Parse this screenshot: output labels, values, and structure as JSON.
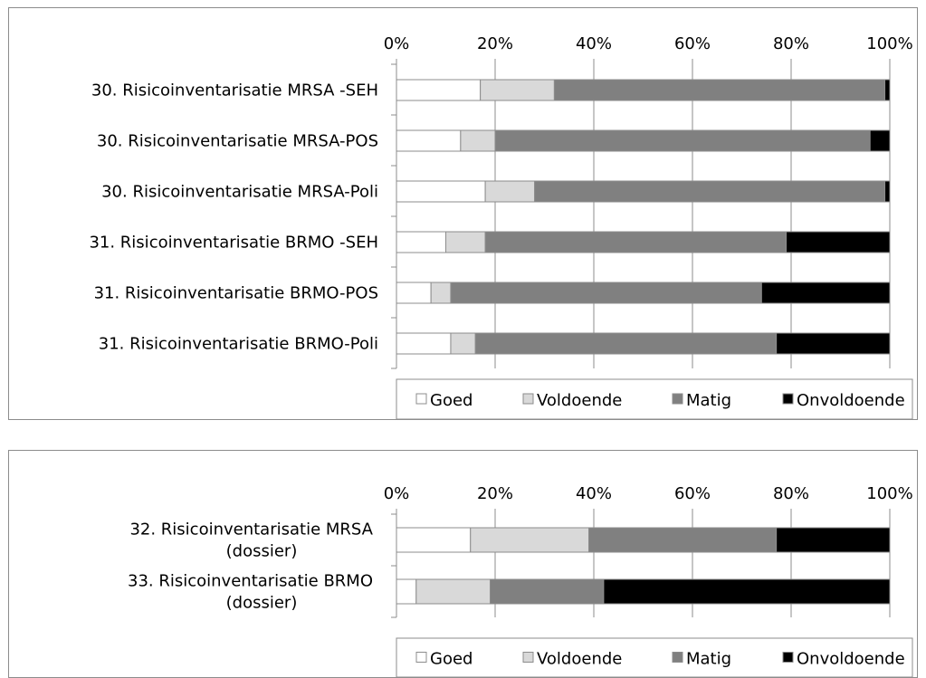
{
  "colors": {
    "Goed": "#ffffff",
    "Voldoende": "#d9d9d9",
    "Matig": "#808080",
    "Onvoldoende": "#000000",
    "grid": "#8c8c8c"
  },
  "chart_data": [
    {
      "type": "bar",
      "orientation": "horizontal",
      "stacked": "percent",
      "categories": [
        "30. Risicoinventarisatie MRSA -SEH",
        "30. Risicoinventarisatie MRSA-POS",
        "30. Risicoinventarisatie MRSA-Poli",
        "31. Risicoinventarisatie BRMO -SEH",
        "31. Risicoinventarisatie BRMO-POS",
        "31. Risicoinventarisatie BRMO-Poli"
      ],
      "series": [
        {
          "name": "Goed",
          "values": [
            17,
            13,
            18,
            10,
            7,
            11
          ]
        },
        {
          "name": "Voldoende",
          "values": [
            15,
            7,
            10,
            8,
            4,
            5
          ]
        },
        {
          "name": "Matig",
          "values": [
            67,
            76,
            71,
            61,
            63,
            61
          ]
        },
        {
          "name": "Onvoldoende",
          "values": [
            1,
            4,
            1,
            21,
            26,
            23
          ]
        }
      ],
      "xlim": [
        0,
        100
      ],
      "ticks": [
        "0%",
        "20%",
        "40%",
        "60%",
        "80%",
        "100%"
      ],
      "xaxis_position": "top",
      "grid": true,
      "legend": "bottom"
    },
    {
      "type": "bar",
      "orientation": "horizontal",
      "stacked": "percent",
      "categories": [
        "32. Risicoinventarisatie MRSA (dossier)",
        "33. Risicoinventarisatie BRMO (dossier)"
      ],
      "category_lines": [
        [
          "32. Risicoinventarisatie MRSA",
          "(dossier)"
        ],
        [
          "33. Risicoinventarisatie BRMO",
          "(dossier)"
        ]
      ],
      "series": [
        {
          "name": "Goed",
          "values": [
            15,
            4
          ]
        },
        {
          "name": "Voldoende",
          "values": [
            24,
            15
          ]
        },
        {
          "name": "Matig",
          "values": [
            38,
            23
          ]
        },
        {
          "name": "Onvoldoende",
          "values": [
            23,
            58
          ]
        }
      ],
      "xlim": [
        0,
        100
      ],
      "ticks": [
        "0%",
        "20%",
        "40%",
        "60%",
        "80%",
        "100%"
      ],
      "xaxis_position": "top",
      "grid": true,
      "legend": "bottom"
    }
  ]
}
